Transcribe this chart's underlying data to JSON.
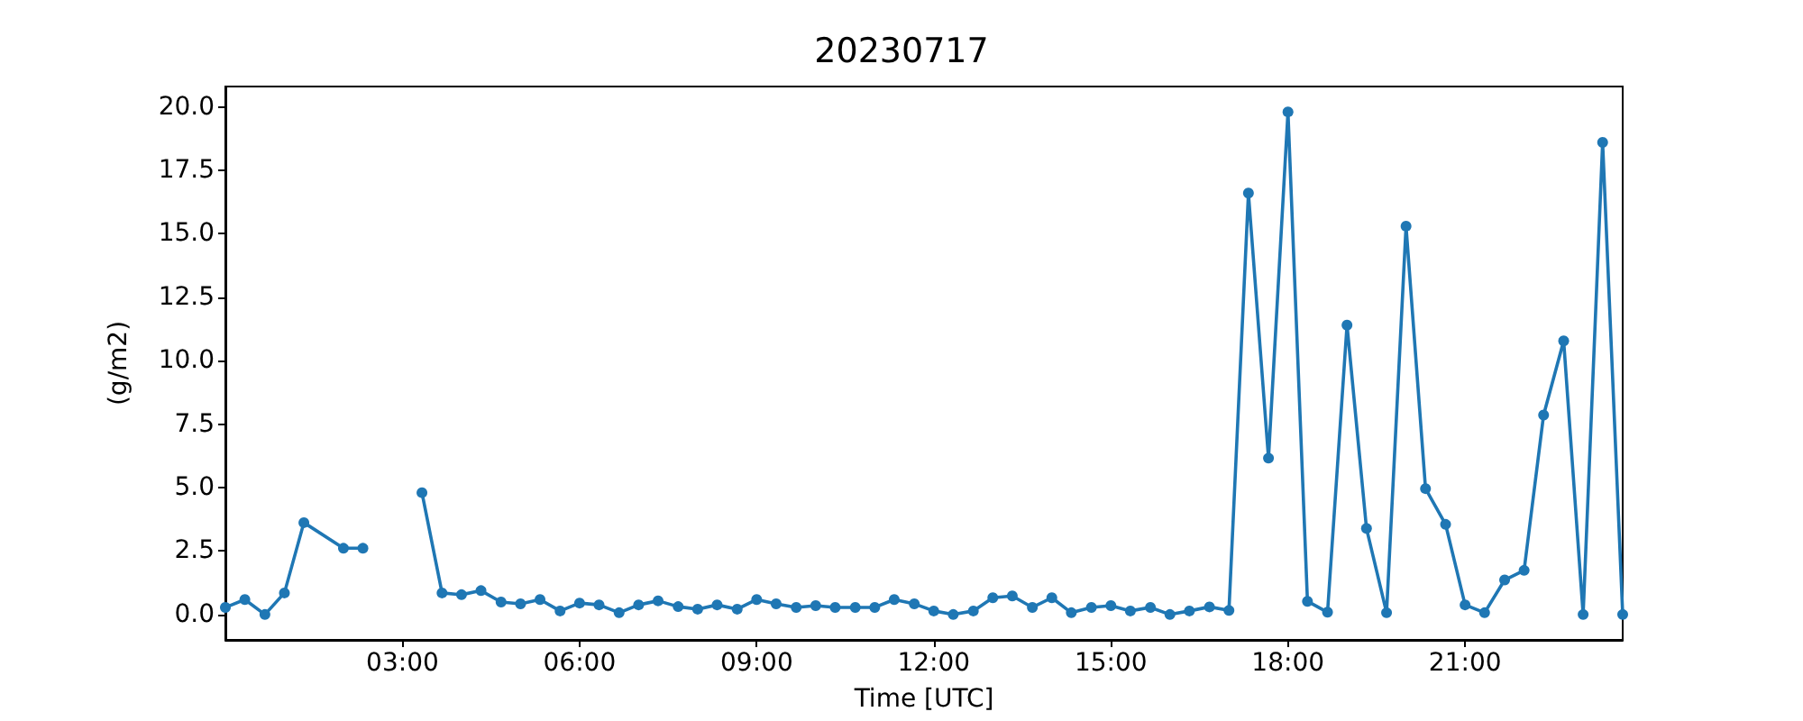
{
  "chart_data": {
    "type": "line",
    "title": "20230717",
    "xlabel": "Time [UTC]",
    "ylabel": "(g/m2)",
    "xlim": [
      0,
      23.67
    ],
    "xticks": [
      {
        "value": 3,
        "label": "03:00"
      },
      {
        "value": 6,
        "label": "06:00"
      },
      {
        "value": 9,
        "label": "09:00"
      },
      {
        "value": 12,
        "label": "12:00"
      },
      {
        "value": 15,
        "label": "15:00"
      },
      {
        "value": 18,
        "label": "18:00"
      },
      {
        "value": 21,
        "label": "21:00"
      }
    ],
    "ylim": [
      -1.0,
      20.8
    ],
    "yticks": [
      {
        "value": 0,
        "label": "0.0"
      },
      {
        "value": 2.5,
        "label": "2.5"
      },
      {
        "value": 5,
        "label": "5.0"
      },
      {
        "value": 7.5,
        "label": "7.5"
      },
      {
        "value": 10,
        "label": "10.0"
      },
      {
        "value": 12.5,
        "label": "12.5"
      },
      {
        "value": 15,
        "label": "15.0"
      },
      {
        "value": 17.5,
        "label": "17.5"
      },
      {
        "value": 20,
        "label": "20.0"
      }
    ],
    "x": [
      0,
      0.33,
      0.67,
      1,
      1.33,
      2,
      2.33,
      2.67,
      3,
      3.33,
      3.67,
      4,
      4.33,
      4.67,
      5,
      5.33,
      5.67,
      6,
      6.33,
      6.67,
      7,
      7.33,
      7.67,
      8,
      8.33,
      8.67,
      9,
      9.33,
      9.67,
      10,
      10.33,
      10.67,
      11,
      11.33,
      11.67,
      12,
      12.33,
      12.67,
      13,
      13.33,
      13.67,
      14,
      14.33,
      14.67,
      15,
      15.33,
      15.67,
      16,
      16.33,
      16.67,
      17,
      17.33,
      17.67,
      18,
      18.33,
      18.67,
      19,
      19.33,
      19.67,
      20,
      20.33,
      20.67,
      21,
      21.33,
      21.67,
      22,
      22.33,
      22.67,
      23,
      23.33,
      23.67
    ],
    "series": [
      {
        "color": "#1f77b4",
        "values": [
          0.28,
          0.59,
          0,
          0.85,
          3.62,
          2.61,
          2.61,
          null,
          null,
          4.8,
          0.85,
          0.78,
          0.94,
          0.49,
          0.42,
          0.59,
          0.14,
          0.45,
          0.38,
          0.07,
          0.38,
          0.54,
          0.31,
          0.21,
          0.38,
          0.21,
          0.59,
          0.42,
          0.28,
          0.35,
          0.28,
          0.28,
          0.28,
          0.59,
          0.42,
          0.14,
          0,
          0.14,
          0.66,
          0.73,
          0.28,
          0.66,
          0.07,
          0.28,
          0.35,
          0.14,
          0.28,
          0,
          0.14,
          0.3,
          0.16,
          16.6,
          6.16,
          19.8,
          0.52,
          0.09,
          11.4,
          3.39,
          0.07,
          15.3,
          4.96,
          3.55,
          0.38,
          0.07,
          1.36,
          1.74,
          7.86,
          10.78,
          0,
          18.6,
          0
        ]
      }
    ],
    "marker": "circle",
    "line_style": "solid"
  }
}
